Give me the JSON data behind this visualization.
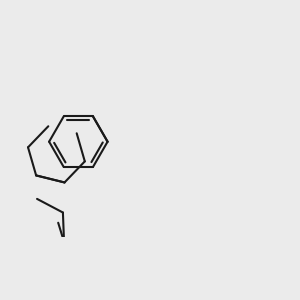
{
  "bg_color": "#ebebeb",
  "bond_color": "#1a1a1a",
  "o_color": "#ff0000",
  "cl_color": "#00aa00",
  "line_width": 1.5
}
